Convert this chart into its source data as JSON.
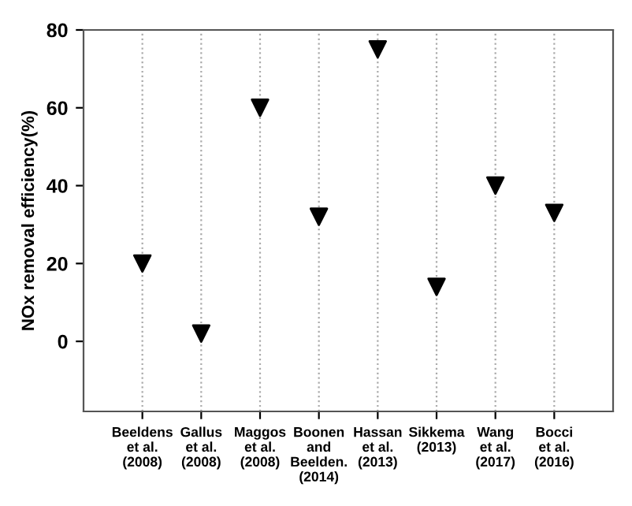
{
  "chart_data": {
    "type": "scatter",
    "ylabel": "NOx removal efficiency(%)",
    "categories": [
      "Beeldens\net al.\n(2008)",
      "Gallus\net al.\n(2008)",
      "Maggos\net al.\n(2008)",
      "Boonen\nand\nBeelden.\n(2014)",
      "Hassan\net al.\n(2013)",
      "Sikkema\n(2013)",
      "Wang\net al.\n(2017)",
      "Bocci\net al.\n(2016)"
    ],
    "values": [
      20,
      2,
      60,
      32,
      75,
      14,
      40,
      33
    ],
    "color": "#000000",
    "marker": "triangle",
    "ylim": [
      -18,
      80
    ],
    "yticks": [
      0,
      20,
      40,
      60,
      80
    ],
    "grid": "x",
    "legend": false
  }
}
